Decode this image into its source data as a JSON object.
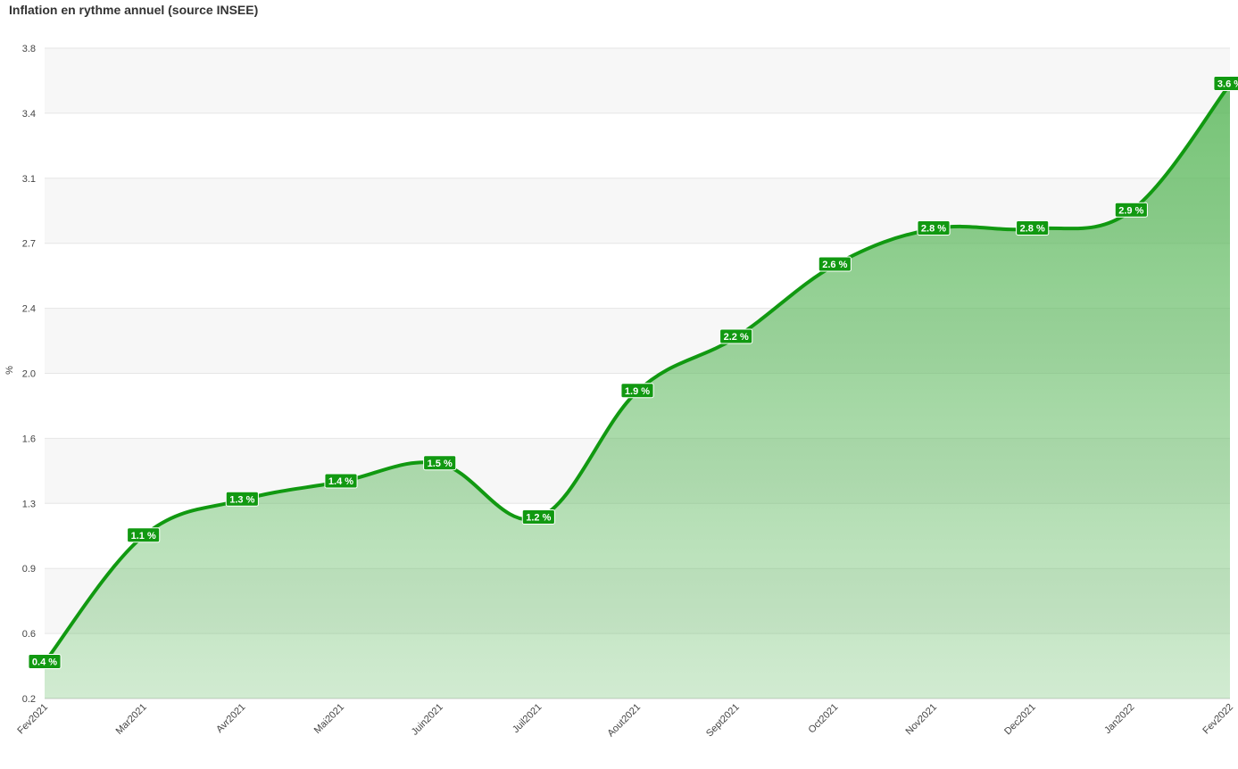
{
  "chart_data": {
    "type": "area",
    "title": "Inflation en rythme annuel (source INSEE)",
    "y_label": "%",
    "categories": [
      "Fev2021",
      "Mar2021",
      "Avr2021",
      "Mai2021",
      "Juin2021",
      "Juil2021",
      "Aout2021",
      "Sept2021",
      "Oct2021",
      "Nov2021",
      "Dec2021",
      "Jan2022",
      "Fev2022"
    ],
    "values": [
      0.4,
      1.1,
      1.3,
      1.4,
      1.5,
      1.2,
      1.9,
      2.2,
      2.6,
      2.8,
      2.8,
      2.9,
      3.6
    ],
    "value_labels": [
      "0.4 %",
      "1.1 %",
      "1.3 %",
      "1.4 %",
      "1.5 %",
      "1.2 %",
      "1.9 %",
      "2.2 %",
      "2.6 %",
      "2.8 %",
      "2.8 %",
      "2.9 %",
      "3.6 %"
    ],
    "color": "#119911",
    "ylim": [
      0.2,
      3.8
    ],
    "yticks": [
      {
        "value": 0.2,
        "label": "0.2"
      },
      {
        "value": 0.56,
        "label": "0.6"
      },
      {
        "value": 0.92,
        "label": "0.9"
      },
      {
        "value": 1.28,
        "label": "1.3"
      },
      {
        "value": 1.64,
        "label": "1.6"
      },
      {
        "value": 2,
        "label": "2.0"
      },
      {
        "value": 2.36,
        "label": "2.4"
      },
      {
        "value": 2.72,
        "label": "2.7"
      },
      {
        "value": 3.08,
        "label": "3.1"
      },
      {
        "value": 3.44,
        "label": "3.4"
      },
      {
        "value": 3.8,
        "label": "3.8"
      }
    ],
    "grid": true
  }
}
